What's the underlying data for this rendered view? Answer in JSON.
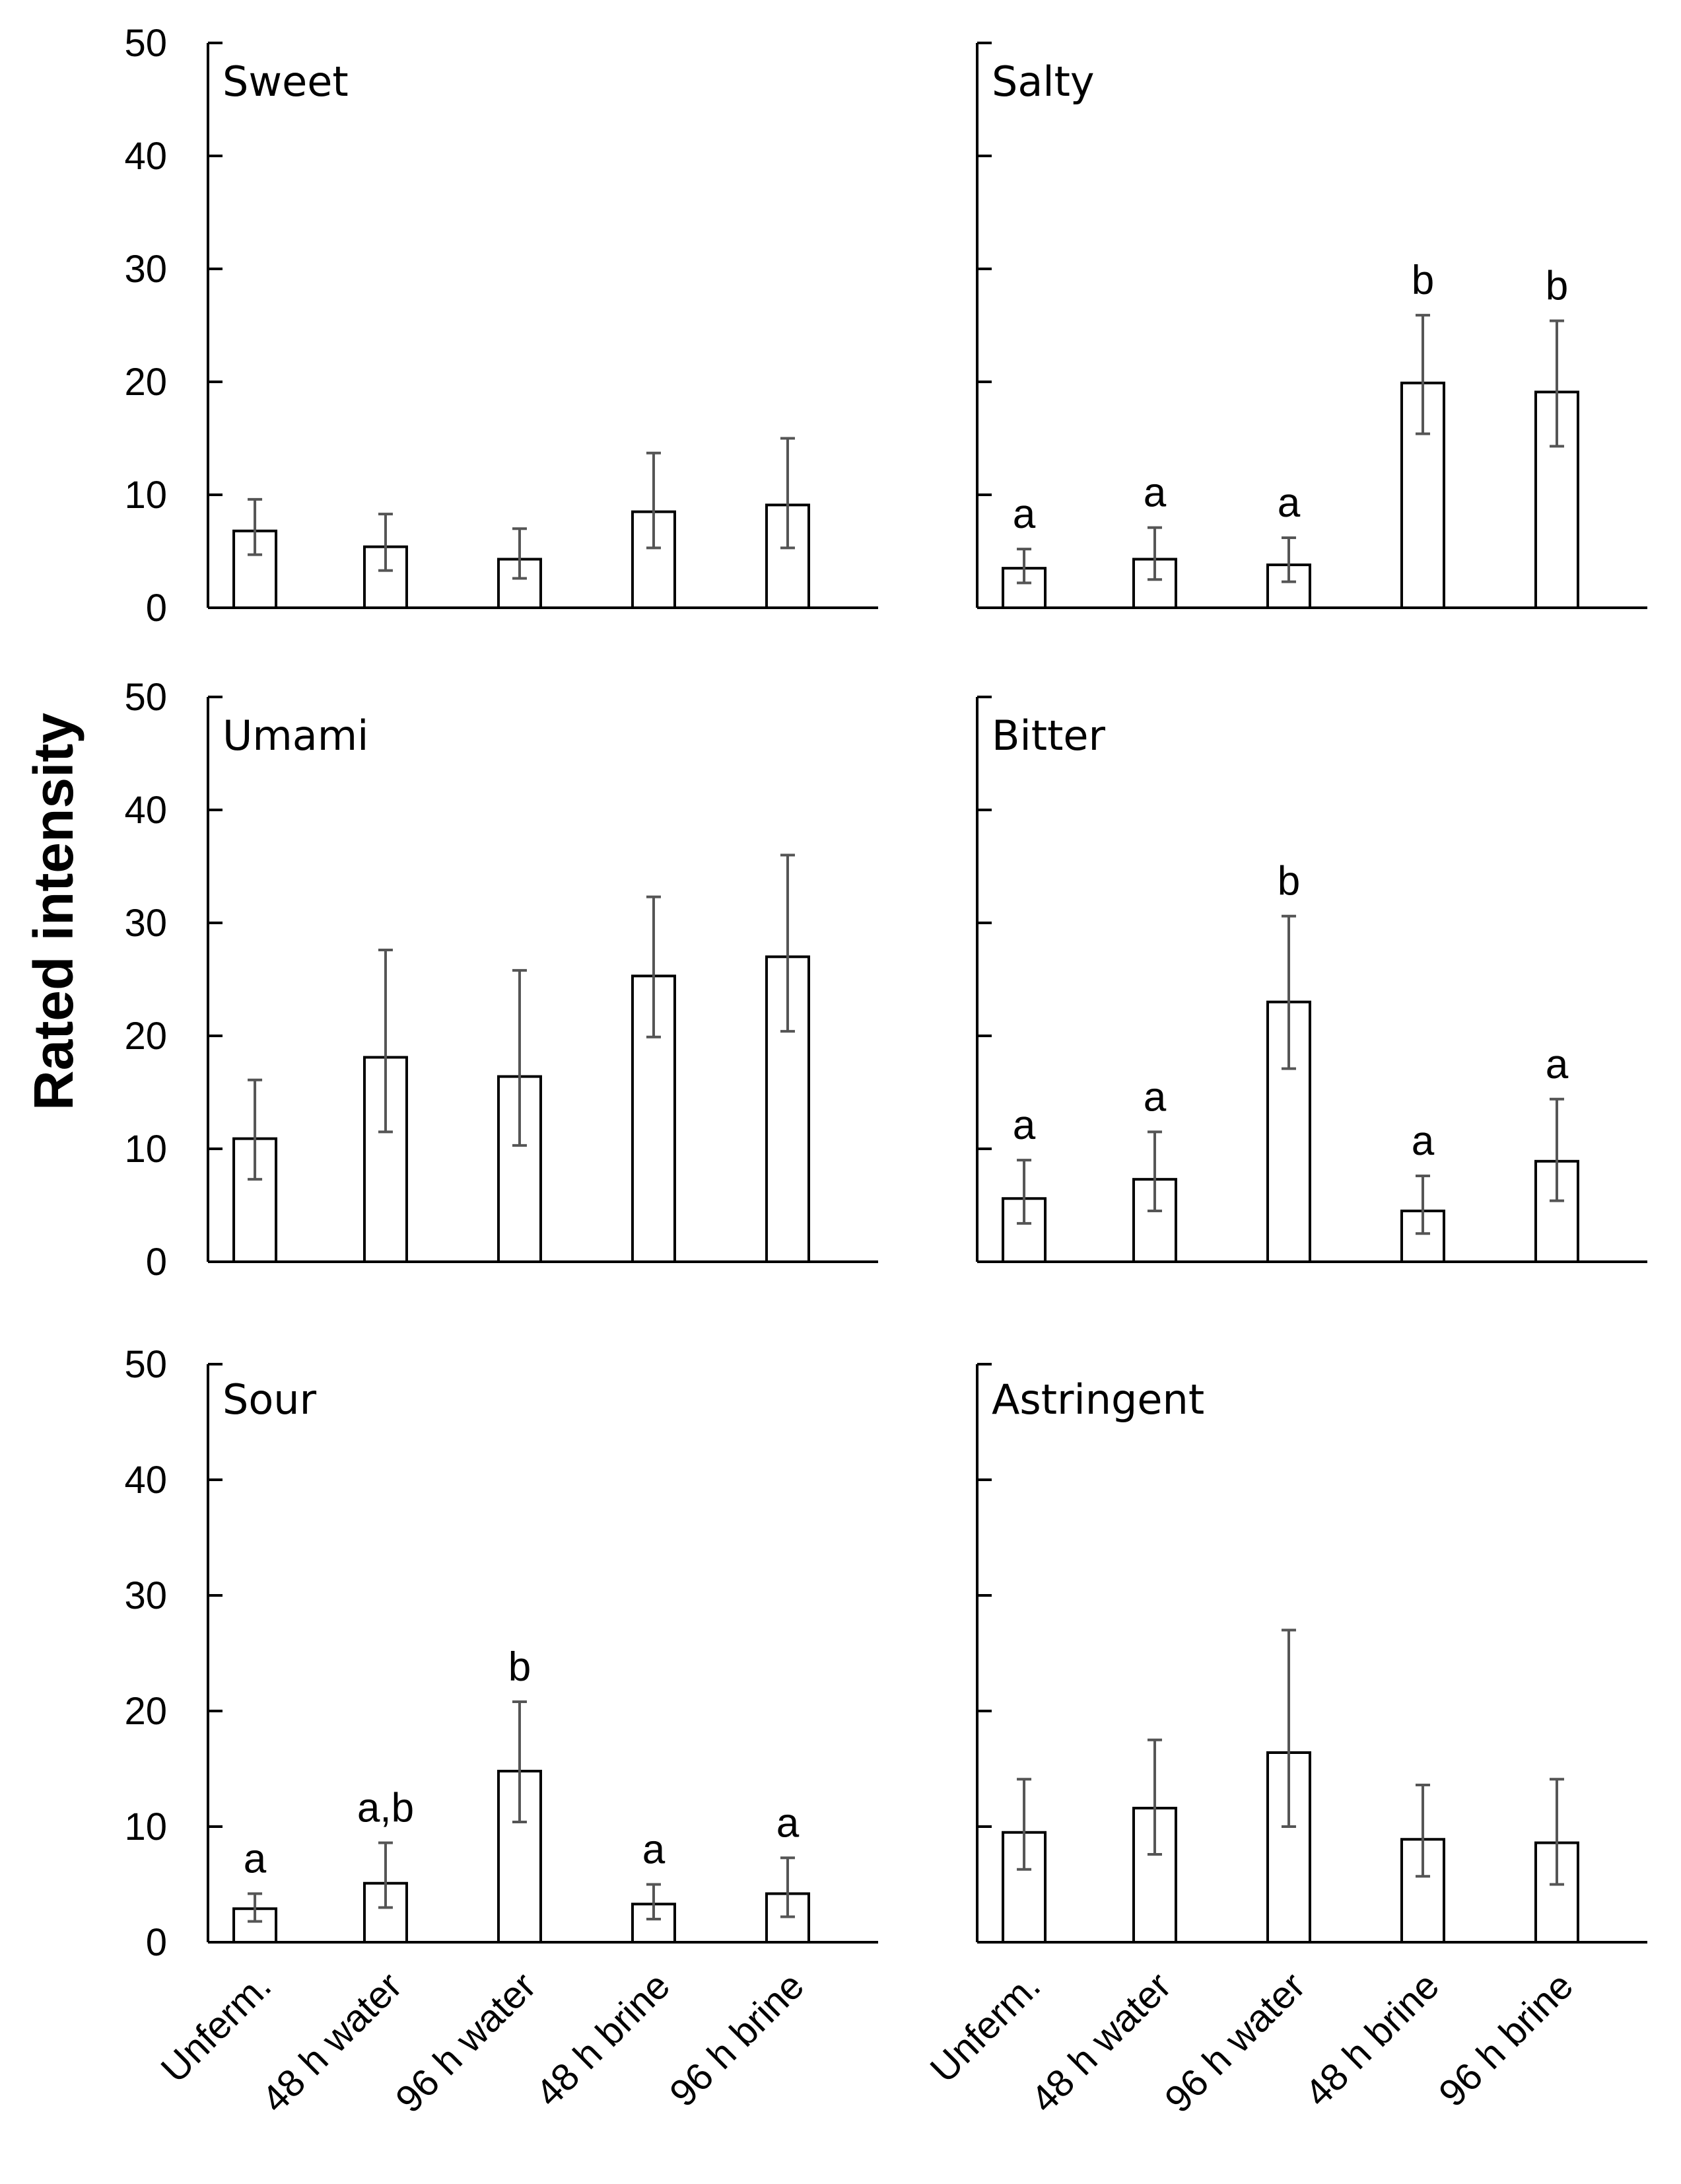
{
  "figure": {
    "ylabel": "Rated intensity"
  },
  "chart_data": [
    {
      "type": "bar",
      "title": "Sweet",
      "categories": [
        "Unferm.",
        "48 h water",
        "96 h water",
        "48 h brine",
        "96 h brine"
      ],
      "values": [
        6.8,
        5.4,
        4.3,
        8.5,
        9.1
      ],
      "err_low": [
        4.7,
        3.3,
        2.6,
        5.3,
        5.3
      ],
      "err_high": [
        9.6,
        8.3,
        7.0,
        13.7,
        15.0
      ],
      "letters": [
        "",
        "",
        "",
        "",
        ""
      ],
      "ylim": [
        0,
        50
      ],
      "yticks": [
        "0",
        "10",
        "20",
        "30",
        "40",
        "50"
      ],
      "show_xlabels": false,
      "show_yticklabels": true,
      "grid": false
    },
    {
      "type": "bar",
      "title": "Salty",
      "categories": [
        "Unferm.",
        "48 h water",
        "96 h water",
        "48 h brine",
        "96 h brine"
      ],
      "values": [
        3.5,
        4.3,
        3.8,
        19.9,
        19.1
      ],
      "err_low": [
        2.2,
        2.5,
        2.3,
        15.4,
        14.3
      ],
      "err_high": [
        5.2,
        7.1,
        6.2,
        25.9,
        25.4
      ],
      "letters": [
        "a",
        "a",
        "a",
        "b",
        "b"
      ],
      "ylim": [
        0,
        50
      ],
      "yticks": [
        "0",
        "10",
        "20",
        "30",
        "40",
        "50"
      ],
      "show_xlabels": false,
      "show_yticklabels": false,
      "grid": false
    },
    {
      "type": "bar",
      "title": "Umami",
      "categories": [
        "Unferm.",
        "48 h water",
        "96 h water",
        "48 h brine",
        "96 h brine"
      ],
      "values": [
        10.9,
        18.1,
        16.4,
        25.3,
        27.0
      ],
      "err_low": [
        7.3,
        11.5,
        10.3,
        19.9,
        20.4
      ],
      "err_high": [
        16.1,
        27.6,
        25.8,
        32.3,
        36.0
      ],
      "letters": [
        "",
        "",
        "",
        "",
        ""
      ],
      "ylim": [
        0,
        50
      ],
      "yticks": [
        "0",
        "10",
        "20",
        "30",
        "40",
        "50"
      ],
      "show_xlabels": false,
      "show_yticklabels": true,
      "grid": false
    },
    {
      "type": "bar",
      "title": "Bitter",
      "categories": [
        "Unferm.",
        "48 h water",
        "96 h water",
        "48 h brine",
        "96 h brine"
      ],
      "values": [
        5.6,
        7.3,
        23.0,
        4.5,
        8.9
      ],
      "err_low": [
        3.4,
        4.5,
        17.1,
        2.5,
        5.4
      ],
      "err_high": [
        9.0,
        11.5,
        30.6,
        7.6,
        14.4
      ],
      "letters": [
        "a",
        "a",
        "b",
        "a",
        "a"
      ],
      "ylim": [
        0,
        50
      ],
      "yticks": [
        "0",
        "10",
        "20",
        "30",
        "40",
        "50"
      ],
      "show_xlabels": false,
      "show_yticklabels": false,
      "grid": false
    },
    {
      "type": "bar",
      "title": "Sour",
      "categories": [
        "Unferm.",
        "48 h water",
        "96 h water",
        "48 h brine",
        "96 h brine"
      ],
      "values": [
        2.9,
        5.1,
        14.8,
        3.3,
        4.2
      ],
      "err_low": [
        1.8,
        3.0,
        10.4,
        2.0,
        2.2
      ],
      "err_high": [
        4.2,
        8.6,
        20.8,
        5.0,
        7.3
      ],
      "letters": [
        "a",
        "a,b",
        "b",
        "a",
        "a"
      ],
      "ylim": [
        0,
        50
      ],
      "yticks": [
        "0",
        "10",
        "20",
        "30",
        "40",
        "50"
      ],
      "show_xlabels": true,
      "show_yticklabels": true,
      "grid": false
    },
    {
      "type": "bar",
      "title": "Astringent",
      "categories": [
        "Unferm.",
        "48 h water",
        "96 h water",
        "48 h brine",
        "96 h brine"
      ],
      "values": [
        9.5,
        11.6,
        16.4,
        8.9,
        8.6
      ],
      "err_low": [
        6.3,
        7.6,
        10.0,
        5.7,
        5.0
      ],
      "err_high": [
        14.1,
        17.5,
        27.0,
        13.6,
        14.1
      ],
      "letters": [
        "",
        "",
        "",
        "",
        ""
      ],
      "ylim": [
        0,
        50
      ],
      "yticks": [
        "0",
        "10",
        "20",
        "30",
        "40",
        "50"
      ],
      "show_xlabels": true,
      "show_yticklabels": false,
      "grid": false
    }
  ]
}
